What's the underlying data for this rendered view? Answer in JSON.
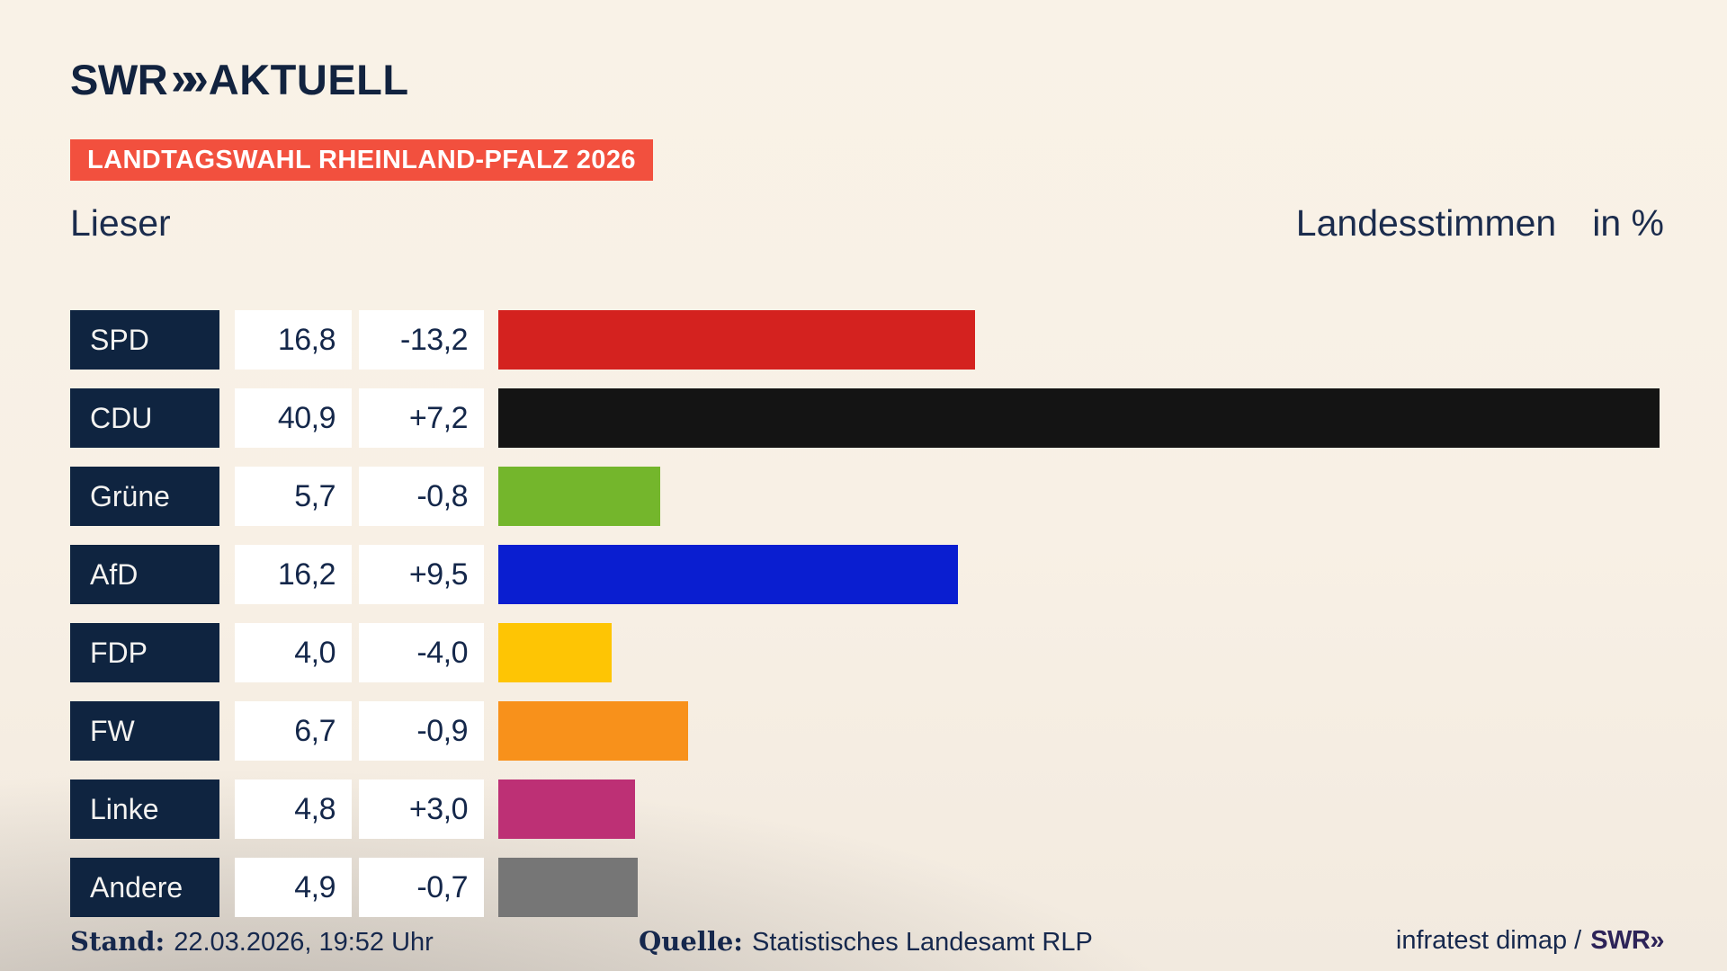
{
  "brand": {
    "logo_swr": "SWR",
    "logo_chevrons": "»»",
    "logo_suffix": "AKTUELL"
  },
  "banner": {
    "text": "LANDTAGSWAHL RHEINLAND-PFALZ 2026",
    "bg_color": "#f2503e"
  },
  "header": {
    "title": "Lieser",
    "right_label": "Landesstimmen",
    "right_unit": "in %"
  },
  "chart_data": {
    "type": "bar",
    "orientation": "horizontal",
    "title": "Lieser",
    "value_unit": "Landesstimmen in %",
    "categories": [
      "SPD",
      "CDU",
      "Grüne",
      "AfD",
      "FDP",
      "FW",
      "Linke",
      "Andere"
    ],
    "values": [
      16.8,
      40.9,
      5.7,
      16.2,
      4.0,
      6.7,
      4.8,
      4.9
    ],
    "value_labels": [
      "16,8",
      "40,9",
      "5,7",
      "16,2",
      "4,0",
      "6,7",
      "4,8",
      "4,9"
    ],
    "diff_labels": [
      "-13,2",
      "+7,2",
      "-0,8",
      "+9,5",
      "-4,0",
      "-0,9",
      "+3,0",
      "-0,7"
    ],
    "bar_colors": [
      "#d4221f",
      "#141414",
      "#74b62c",
      "#0a1ed0",
      "#fec504",
      "#f8911b",
      "#bd3075",
      "#767676"
    ],
    "xmax": 40.9,
    "grid": false,
    "legend": false
  },
  "footer": {
    "stand_label": "Stand:",
    "stand_value": "22.03.2026, 19:52 Uhr",
    "quelle_label": "Quelle:",
    "quelle_value": "Statistisches Landesamt RLP",
    "credit_text": "infratest dimap /",
    "credit_logo": "SWR»"
  }
}
